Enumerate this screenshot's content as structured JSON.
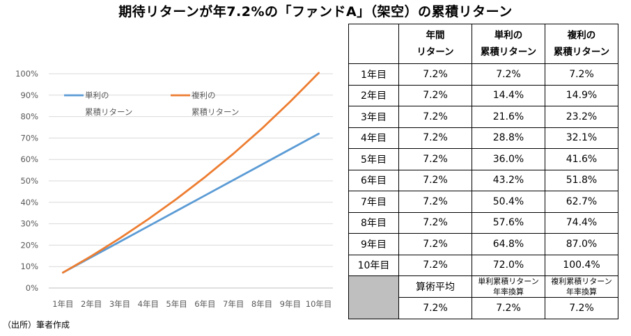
{
  "title": "期待リターンが年7.2%の「ファンドA」（架空）の累積リターン",
  "source": "（出所）筆者作成",
  "chart_data": {
    "type": "line",
    "categories": [
      "1年目",
      "2年目",
      "3年目",
      "4年目",
      "5年目",
      "6年目",
      "7年目",
      "8年目",
      "9年目",
      "10年目"
    ],
    "series": [
      {
        "name": "単利の累積リターン",
        "legend_lines": [
          "単利の",
          "累積リターン"
        ],
        "color": "#5b9bd5",
        "values": [
          7.2,
          14.4,
          21.6,
          28.8,
          36.0,
          43.2,
          50.4,
          57.6,
          64.8,
          72.0
        ]
      },
      {
        "name": "複利の累積リターン",
        "legend_lines": [
          "複利の",
          "累積リターン"
        ],
        "color": "#ed7d31",
        "values": [
          7.2,
          14.9,
          23.2,
          32.1,
          41.6,
          51.8,
          62.7,
          74.4,
          87.0,
          100.4
        ]
      }
    ],
    "ylim": [
      0,
      100
    ],
    "yticks": [
      "0%",
      "10%",
      "20%",
      "30%",
      "40%",
      "50%",
      "60%",
      "70%",
      "80%",
      "90%",
      "100%"
    ],
    "grid": true,
    "legend_position": "top-left"
  },
  "table": {
    "headers": [
      {
        "lines": []
      },
      {
        "lines": [
          "年間",
          "リターン"
        ]
      },
      {
        "lines": [
          "単利の",
          "累積リターン"
        ]
      },
      {
        "lines": [
          "複利の",
          "累積リターン"
        ]
      }
    ],
    "rows": [
      [
        "1年目",
        "7.2%",
        "7.2%",
        "7.2%"
      ],
      [
        "2年目",
        "7.2%",
        "14.4%",
        "14.9%"
      ],
      [
        "3年目",
        "7.2%",
        "21.6%",
        "23.2%"
      ],
      [
        "4年目",
        "7.2%",
        "28.8%",
        "32.1%"
      ],
      [
        "5年目",
        "7.2%",
        "36.0%",
        "41.6%"
      ],
      [
        "6年目",
        "7.2%",
        "43.2%",
        "51.8%"
      ],
      [
        "7年目",
        "7.2%",
        "50.4%",
        "62.7%"
      ],
      [
        "8年目",
        "7.2%",
        "57.6%",
        "74.4%"
      ],
      [
        "9年目",
        "7.2%",
        "64.8%",
        "87.0%"
      ],
      [
        "10年目",
        "7.2%",
        "72.0%",
        "100.4%"
      ]
    ],
    "summary_labels": [
      {
        "lines": [
          "算術平均"
        ]
      },
      {
        "lines": [
          "単利累積リターン",
          "年率換算"
        ]
      },
      {
        "lines": [
          "複利累積リターン",
          "年率換算"
        ]
      }
    ],
    "summary_values": [
      "7.2%",
      "7.2%",
      "7.2%"
    ]
  }
}
